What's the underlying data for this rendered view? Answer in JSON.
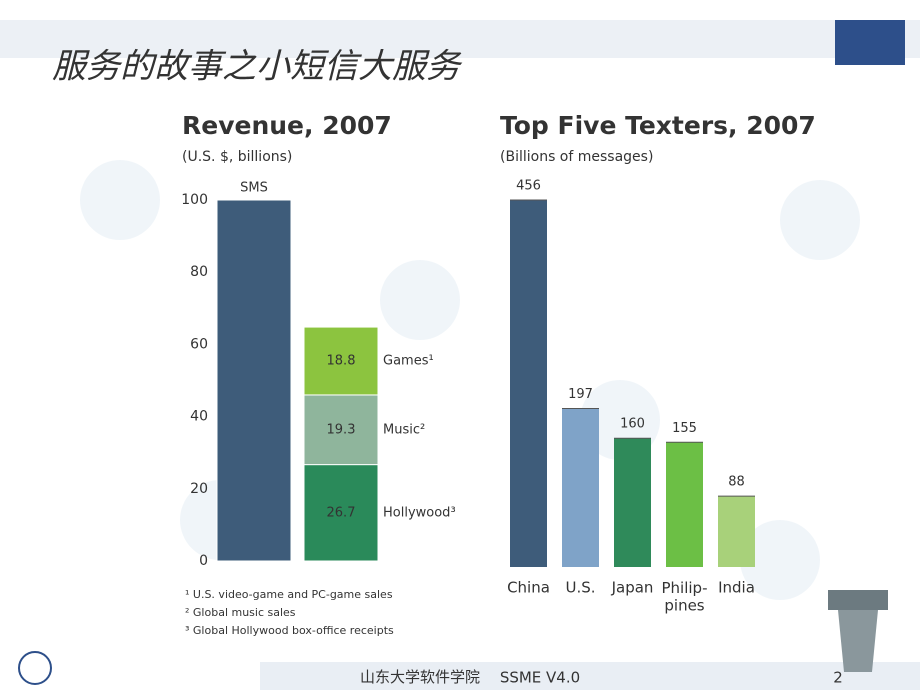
{
  "slide": {
    "title": "服务的故事之小短信大服务",
    "footer": "山东大学软件学院",
    "version": "SSME V4.0",
    "page": "2"
  },
  "chart_data": [
    {
      "type": "stacked-bar",
      "title": "Revenue, 2007",
      "subtitle": "(U.S. $, billions)",
      "categories": [
        "SMS",
        null
      ],
      "series": [
        {
          "color": "#3e5c7a",
          "values": [
            100,
            null
          ]
        },
        {
          "name": "Hollywood³",
          "color": "#2a8a5a",
          "values": [
            null,
            26.7
          ]
        },
        {
          "name": "Music²",
          "color": "#8fb59c",
          "values": [
            null,
            19.3
          ]
        },
        {
          "name": "Games¹",
          "color": "#8cc43f",
          "values": [
            null,
            18.8
          ]
        }
      ],
      "ylim": [
        0,
        100
      ],
      "yticks": [
        0,
        20,
        40,
        60,
        80,
        100
      ],
      "footnotes": [
        "¹ U.S. video-game and PC-game sales",
        "² Global music sales",
        "³ Global Hollywood box-office receipts"
      ]
    },
    {
      "type": "bar",
      "title": "Top Five Texters, 2007",
      "subtitle": "(Billions of messages)",
      "categories": [
        "China",
        "U.S.",
        "Japan",
        "Philip-\npines",
        "India"
      ],
      "values": [
        456,
        197,
        160,
        155,
        88
      ],
      "colors": [
        "#3e5c7a",
        "#7fa3c8",
        "#2f8a5a",
        "#6cbf45",
        "#a8d17a"
      ],
      "ylim": [
        0,
        456
      ]
    }
  ]
}
